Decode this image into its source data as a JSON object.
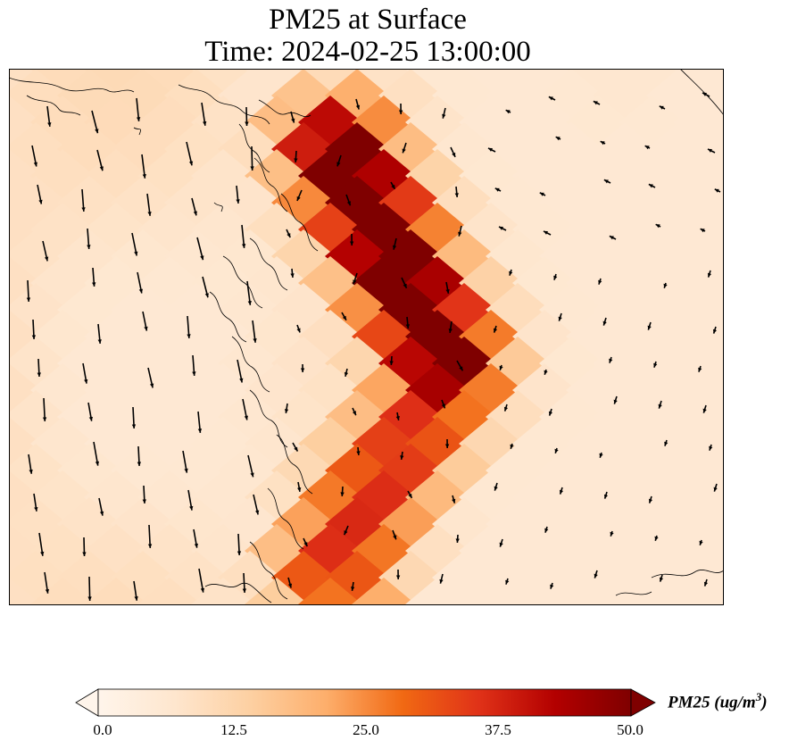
{
  "title": {
    "line1": "PM25 at Surface",
    "line2": "Time: 2024-02-25 13:00:00"
  },
  "colorbar": {
    "variable": "PM25",
    "units_base": "ug/m",
    "units_exponent": "3",
    "min": 0.0,
    "max": 50.0,
    "extend": "both",
    "ticks": [
      "0.0",
      "12.5",
      "25.0",
      "37.5",
      "50.0"
    ],
    "colormap": [
      "#fff5eb",
      "#fee6ce",
      "#fdd0a2",
      "#fdae6b",
      "#f16913",
      "#e03218",
      "#b30000",
      "#7f0000"
    ]
  },
  "map": {
    "field": "PM25",
    "plume_core_value": 50,
    "background_value_west": 9,
    "background_value_east": 3,
    "wind_field": "surface wind vectors (southward over land, weak over sea)"
  }
}
